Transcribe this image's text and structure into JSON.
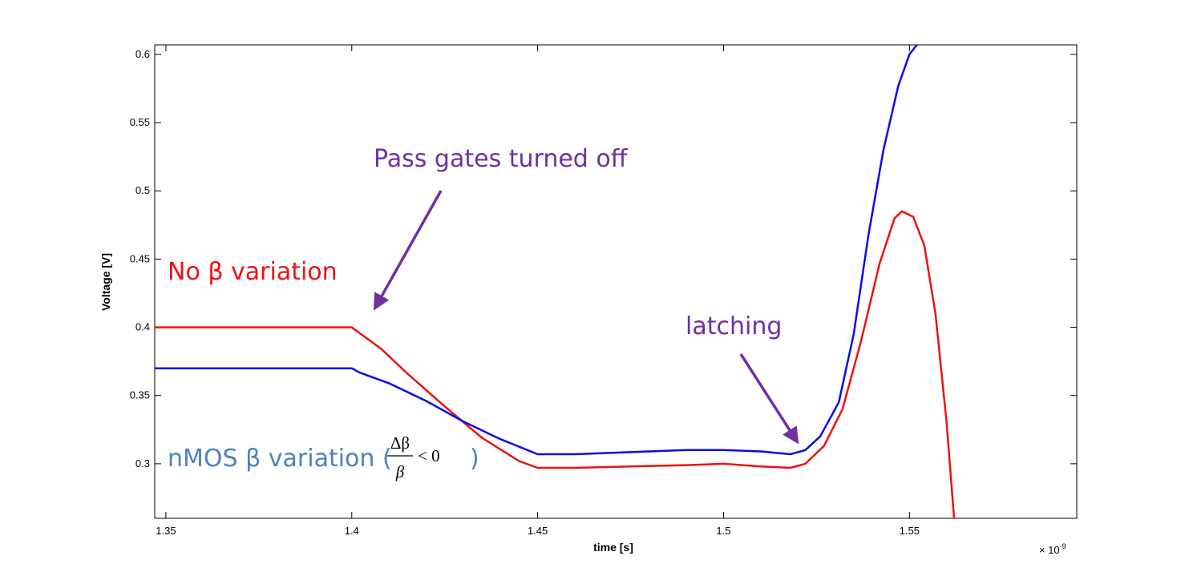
{
  "chart_data": {
    "type": "line",
    "xlabel": "time [s]",
    "ylabel": "Voltage [V]",
    "x_exponent_label": "× 10",
    "x_exponent_power": "-9",
    "xlim": [
      1.347,
      1.595
    ],
    "ylim": [
      0.26,
      0.607
    ],
    "x_ticks": [
      1.35,
      1.4,
      1.45,
      1.5,
      1.55
    ],
    "x_tick_labels": [
      "1.35",
      "1.4",
      "1.45",
      "1.5",
      "1.55"
    ],
    "y_ticks": [
      0.3,
      0.35,
      0.4,
      0.45,
      0.5,
      0.55,
      0.6
    ],
    "y_tick_labels": [
      "0.3",
      "0.35",
      "0.4",
      "0.45",
      "0.5",
      "0.55",
      "0.6"
    ],
    "grid": false,
    "series": [
      {
        "name": "No β variation",
        "color": "#ee1111",
        "points": [
          [
            1.347,
            0.4
          ],
          [
            1.4,
            0.4
          ],
          [
            1.402,
            0.396
          ],
          [
            1.408,
            0.384
          ],
          [
            1.415,
            0.366
          ],
          [
            1.425,
            0.342
          ],
          [
            1.435,
            0.319
          ],
          [
            1.445,
            0.302
          ],
          [
            1.45,
            0.297
          ],
          [
            1.46,
            0.297
          ],
          [
            1.475,
            0.298
          ],
          [
            1.49,
            0.299
          ],
          [
            1.5,
            0.3
          ],
          [
            1.51,
            0.298
          ],
          [
            1.518,
            0.297
          ],
          [
            1.522,
            0.3
          ],
          [
            1.527,
            0.313
          ],
          [
            1.532,
            0.34
          ],
          [
            1.537,
            0.39
          ],
          [
            1.542,
            0.447
          ],
          [
            1.546,
            0.48
          ],
          [
            1.548,
            0.485
          ],
          [
            1.551,
            0.481
          ],
          [
            1.554,
            0.46
          ],
          [
            1.557,
            0.41
          ],
          [
            1.56,
            0.33
          ],
          [
            1.562,
            0.26
          ]
        ]
      },
      {
        "name": "nMOS β variation",
        "color": "#0a0aee",
        "points": [
          [
            1.347,
            0.37
          ],
          [
            1.4,
            0.37
          ],
          [
            1.402,
            0.367
          ],
          [
            1.41,
            0.359
          ],
          [
            1.42,
            0.346
          ],
          [
            1.43,
            0.331
          ],
          [
            1.44,
            0.318
          ],
          [
            1.45,
            0.307
          ],
          [
            1.46,
            0.307
          ],
          [
            1.47,
            0.308
          ],
          [
            1.48,
            0.309
          ],
          [
            1.49,
            0.31
          ],
          [
            1.5,
            0.31
          ],
          [
            1.51,
            0.309
          ],
          [
            1.518,
            0.307
          ],
          [
            1.522,
            0.31
          ],
          [
            1.526,
            0.32
          ],
          [
            1.531,
            0.345
          ],
          [
            1.535,
            0.395
          ],
          [
            1.539,
            0.468
          ],
          [
            1.543,
            0.53
          ],
          [
            1.547,
            0.577
          ],
          [
            1.55,
            0.6
          ],
          [
            1.552,
            0.607
          ]
        ]
      }
    ],
    "annotations": {
      "pass_gates": {
        "text": "Pass gates turned off",
        "color": "#7030a0"
      },
      "latching": {
        "text": "latching",
        "color": "#7030a0"
      },
      "no_beta": {
        "text": "No β variation",
        "color": "#ee1111"
      },
      "nmos_beta": {
        "text_before": "nMOS β variation (",
        "text_after": ")",
        "color": "#4f81bd",
        "math_numerator": "Δβ",
        "math_denominator": "β",
        "math_relation": "< 0"
      }
    }
  }
}
